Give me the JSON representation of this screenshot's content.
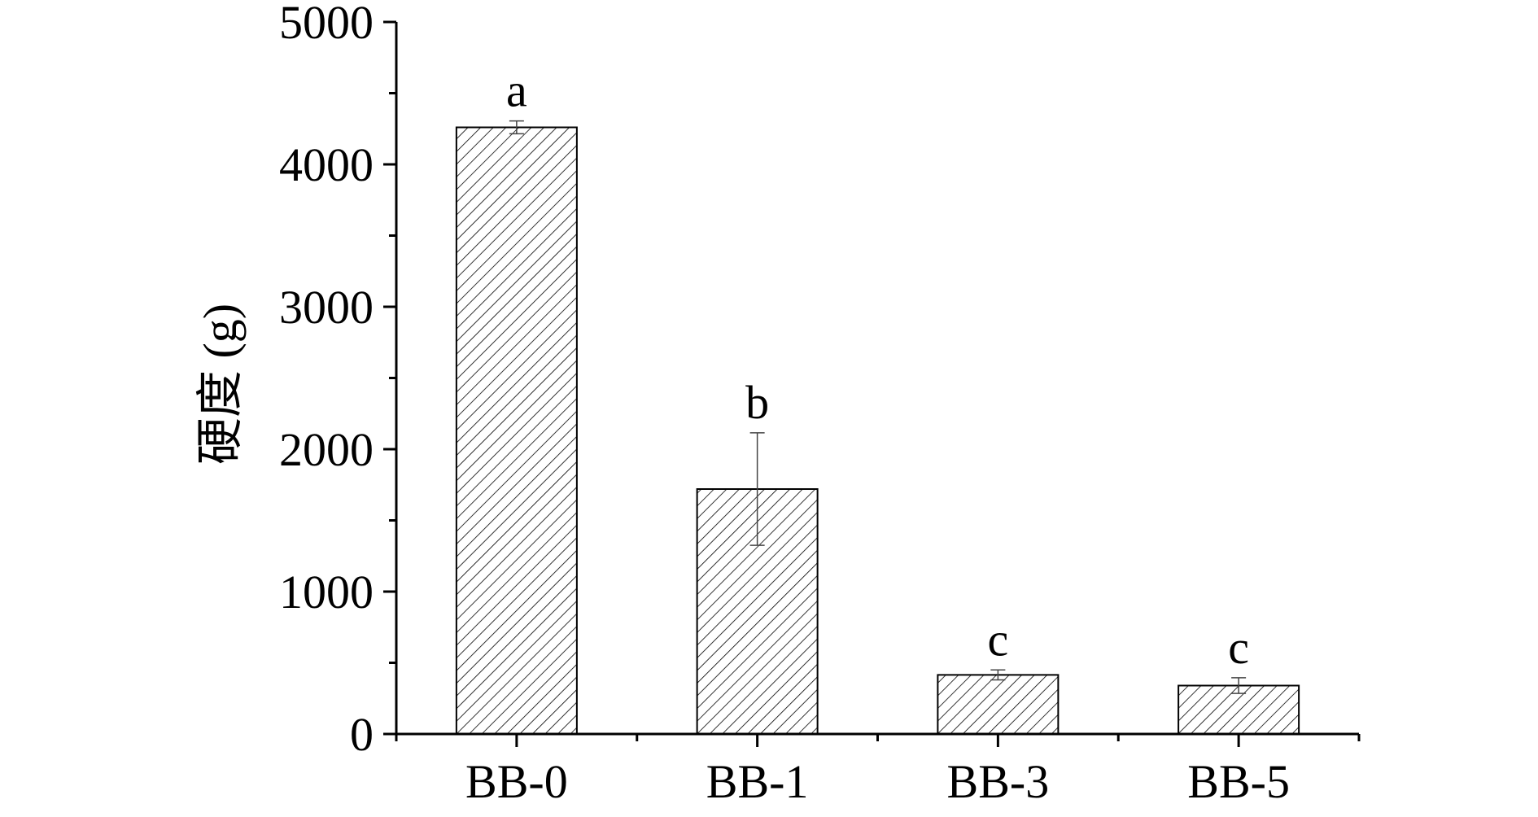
{
  "chart_data": {
    "type": "bar",
    "categories": [
      "BB-0",
      "BB-1",
      "BB-3",
      "BB-5"
    ],
    "values": [
      4260,
      1720,
      415,
      340
    ],
    "errors": [
      45,
      395,
      35,
      55
    ],
    "significance_labels": [
      "a",
      "b",
      "c",
      "c"
    ],
    "ylabel": "硬度 (g)",
    "xlabel": "",
    "ylim": [
      0,
      5000
    ],
    "yticks": [
      0,
      1000,
      2000,
      3000,
      4000,
      5000
    ],
    "ytick_labels": [
      "0",
      "1000",
      "2000",
      "3000",
      "4000",
      "5000"
    ],
    "bar_fill": "hatched",
    "bar_color": "#ffffff",
    "edge_color": "#000000",
    "grid": false,
    "legend": "none"
  }
}
